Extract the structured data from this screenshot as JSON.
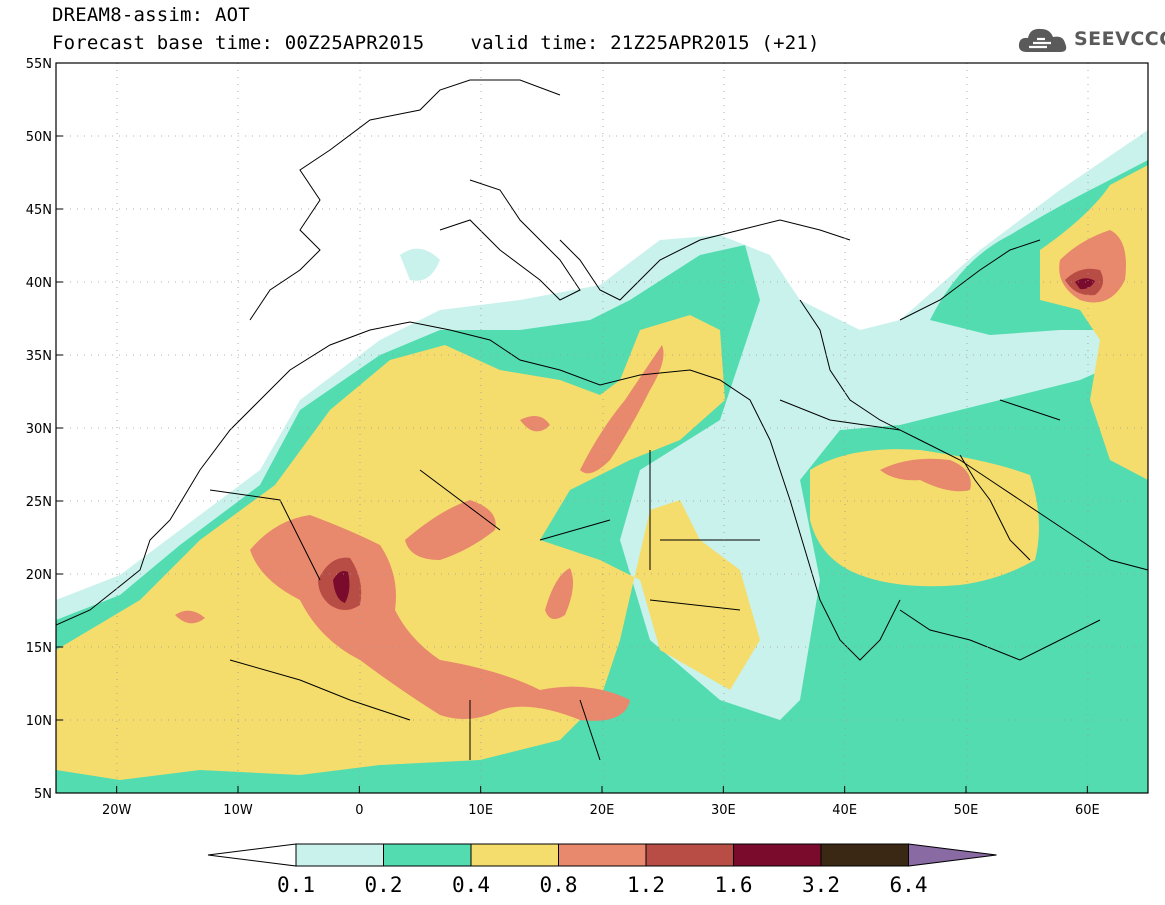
{
  "header": {
    "title": "DREAM8-assim: AOT",
    "base_time": "Forecast base time: 00Z25APR2015",
    "valid_time": "valid time: 21Z25APR2015 (+21)"
  },
  "logo": {
    "text": "SEEVCCC",
    "icon": "cloud-icon"
  },
  "map": {
    "lat_ticks": [
      "55N",
      "50N",
      "45N",
      "40N",
      "35N",
      "30N",
      "25N",
      "20N",
      "15N",
      "10N",
      "5N"
    ],
    "lon_ticks": [
      "20W",
      "10W",
      "0",
      "10E",
      "20E",
      "30E",
      "40E",
      "50E",
      "60E"
    ],
    "lat_range": [
      5,
      55
    ],
    "lon_range": [
      -25,
      65
    ],
    "gridlines": "dotted"
  },
  "colorbar": {
    "levels": [
      "0.1",
      "0.2",
      "0.4",
      "0.8",
      "1.2",
      "1.6",
      "3.2",
      "6.4"
    ],
    "colors": [
      "#c9f2ec",
      "#52dcb0",
      "#f4dd6c",
      "#e8886c",
      "#b74d45",
      "#7b0b2d",
      "#3a2814"
    ],
    "under_color": "#ffffff",
    "over_color": "#8a6aa3"
  }
}
